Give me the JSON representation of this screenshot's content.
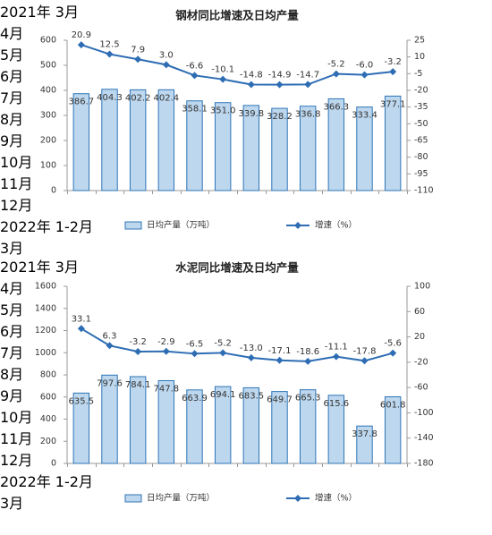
{
  "chart_data": [
    {
      "type": "bar-line",
      "title": "钢材同比增速及日均产量",
      "legend": "bottom",
      "grid": false,
      "categories": [
        "2021年\n3月",
        "4月",
        "5月",
        "6月",
        "7月",
        "8月",
        "9月",
        "10月",
        "11月",
        "12月",
        "2022年\n1-2月",
        "3月"
      ],
      "series": [
        {
          "name": "日均产量（万吨）",
          "type": "bar",
          "axis": "y",
          "color": "#bdd7ee",
          "stroke": "#2e75b6",
          "values": [
            386.7,
            404.3,
            402.2,
            402.4,
            358.1,
            351.0,
            339.8,
            328.2,
            336.8,
            366.3,
            333.4,
            377.1
          ],
          "value_labels": [
            "386.7",
            "404.3",
            "402.2",
            "402.4",
            "358.1",
            "351.0",
            "339.8",
            "328.2",
            "336.8",
            "366.3",
            "333.4",
            "377.1"
          ]
        },
        {
          "name": "增速（%）",
          "type": "line",
          "axis": "y2",
          "color": "#2e6db4",
          "values": [
            20.9,
            12.5,
            7.9,
            3.0,
            -6.6,
            -10.1,
            -14.8,
            -14.9,
            -14.7,
            -5.2,
            -6.0,
            -3.2
          ],
          "value_labels": [
            "20.9",
            "12.5",
            "7.9",
            "3.0",
            "-6.6",
            "-10.1",
            "-14.8",
            "-14.9",
            "-14.7",
            "-5.2",
            "-6.0",
            "-3.2"
          ]
        }
      ],
      "ylim": [
        0,
        600
      ],
      "yticks": [
        0,
        100,
        200,
        300,
        400,
        500,
        600
      ],
      "y2lim": [
        -110,
        25
      ],
      "y2ticks": [
        25,
        10,
        -5,
        -20,
        -35,
        -50,
        -65,
        -80,
        -95,
        -110
      ]
    },
    {
      "type": "bar-line",
      "title": "水泥同比增速及日均产量",
      "legend": "bottom",
      "grid": false,
      "categories": [
        "2021年\n3月",
        "4月",
        "5月",
        "6月",
        "7月",
        "8月",
        "9月",
        "10月",
        "11月",
        "12月",
        "2022年\n1-2月",
        "3月"
      ],
      "series": [
        {
          "name": "日均产量（万吨）",
          "type": "bar",
          "axis": "y",
          "color": "#bdd7ee",
          "stroke": "#2e75b6",
          "values": [
            635.5,
            797.6,
            784.1,
            747.8,
            663.9,
            694.1,
            683.5,
            649.7,
            665.3,
            615.6,
            337.8,
            601.8
          ],
          "value_labels": [
            "635.5",
            "797.6",
            "784.1",
            "747.8",
            "663.9",
            "694.1",
            "683.5",
            "649.7",
            "665.3",
            "615.6",
            "337.8",
            "601.8"
          ]
        },
        {
          "name": "增速（%）",
          "type": "line",
          "axis": "y2",
          "color": "#2e6db4",
          "values": [
            33.1,
            6.3,
            -3.2,
            -2.9,
            -6.5,
            -5.2,
            -13.0,
            -17.1,
            -18.6,
            -11.1,
            -17.8,
            -5.6
          ],
          "value_labels": [
            "33.1",
            "6.3",
            "-3.2",
            "-2.9",
            "-6.5",
            "-5.2",
            "-13.0",
            "-17.1",
            "-18.6",
            "-11.1",
            "-17.8",
            "-5.6"
          ]
        }
      ],
      "ylim": [
        0,
        1600
      ],
      "yticks": [
        0,
        200,
        400,
        600,
        800,
        1000,
        1200,
        1400,
        1600
      ],
      "y2lim": [
        -180,
        100
      ],
      "y2ticks": [
        100,
        60,
        20,
        -20,
        -60,
        -100,
        -140,
        -180
      ]
    }
  ]
}
